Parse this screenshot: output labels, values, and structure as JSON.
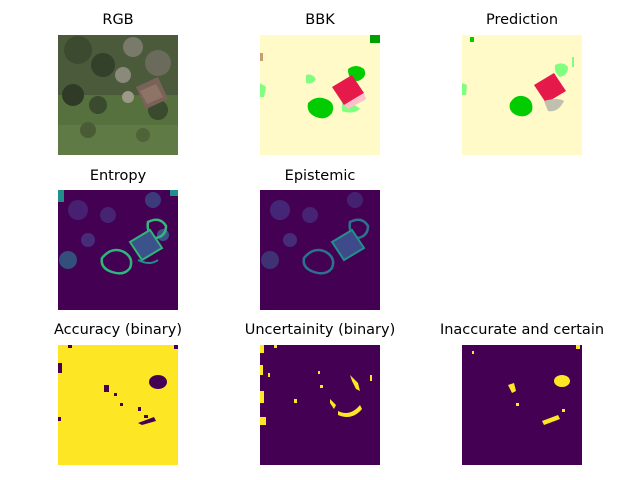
{
  "panels": [
    {
      "id": "rgb",
      "title": "RGB"
    },
    {
      "id": "bbk",
      "title": "BBK"
    },
    {
      "id": "prediction",
      "title": "Prediction"
    },
    {
      "id": "entropy",
      "title": "Entropy"
    },
    {
      "id": "epistemic",
      "title": "Epistemic"
    },
    {
      "id": "accuracy",
      "title": "Accuracy (binary)"
    },
    {
      "id": "uncertainty",
      "title": "Uncertainity (binary)"
    },
    {
      "id": "inaccurate",
      "title": "Inaccurate and certain"
    }
  ],
  "colors": {
    "background_class": "#fffac8",
    "building_class": "#e6194b",
    "vegetation_class": "#00cc00",
    "light_vegetation_class": "#7fff7f",
    "viridis_low": "#440154",
    "viridis_mid": "#21908d",
    "viridis_high": "#fde725"
  }
}
